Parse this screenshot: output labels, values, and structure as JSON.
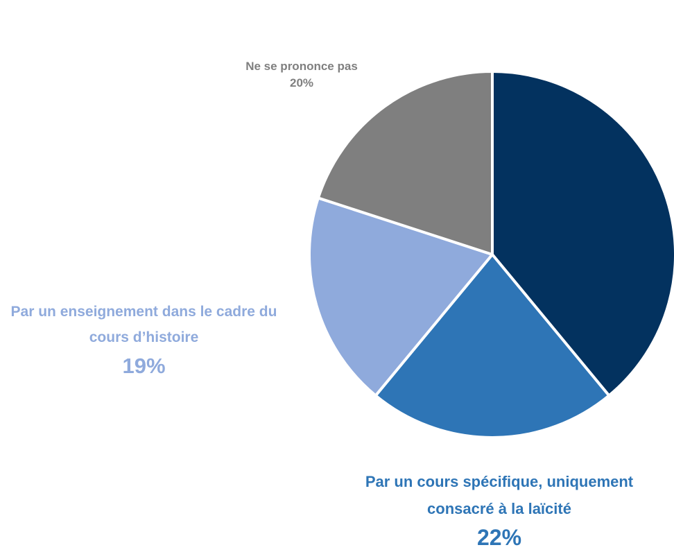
{
  "chart_data": {
    "type": "pie",
    "categories": [
      null,
      "Par un cours spécifique, uniquement consacré à la laïcité",
      "Par un enseignement dans le cadre du cours d’histoire",
      "Ne se prononce pas"
    ],
    "values": [
      39,
      22,
      19,
      20
    ],
    "value_labels": [
      null,
      "22%",
      "19%",
      "20%"
    ],
    "colors": [
      "#03325f",
      "#2e75b6",
      "#8faadc",
      "#7f7f7f"
    ]
  }
}
